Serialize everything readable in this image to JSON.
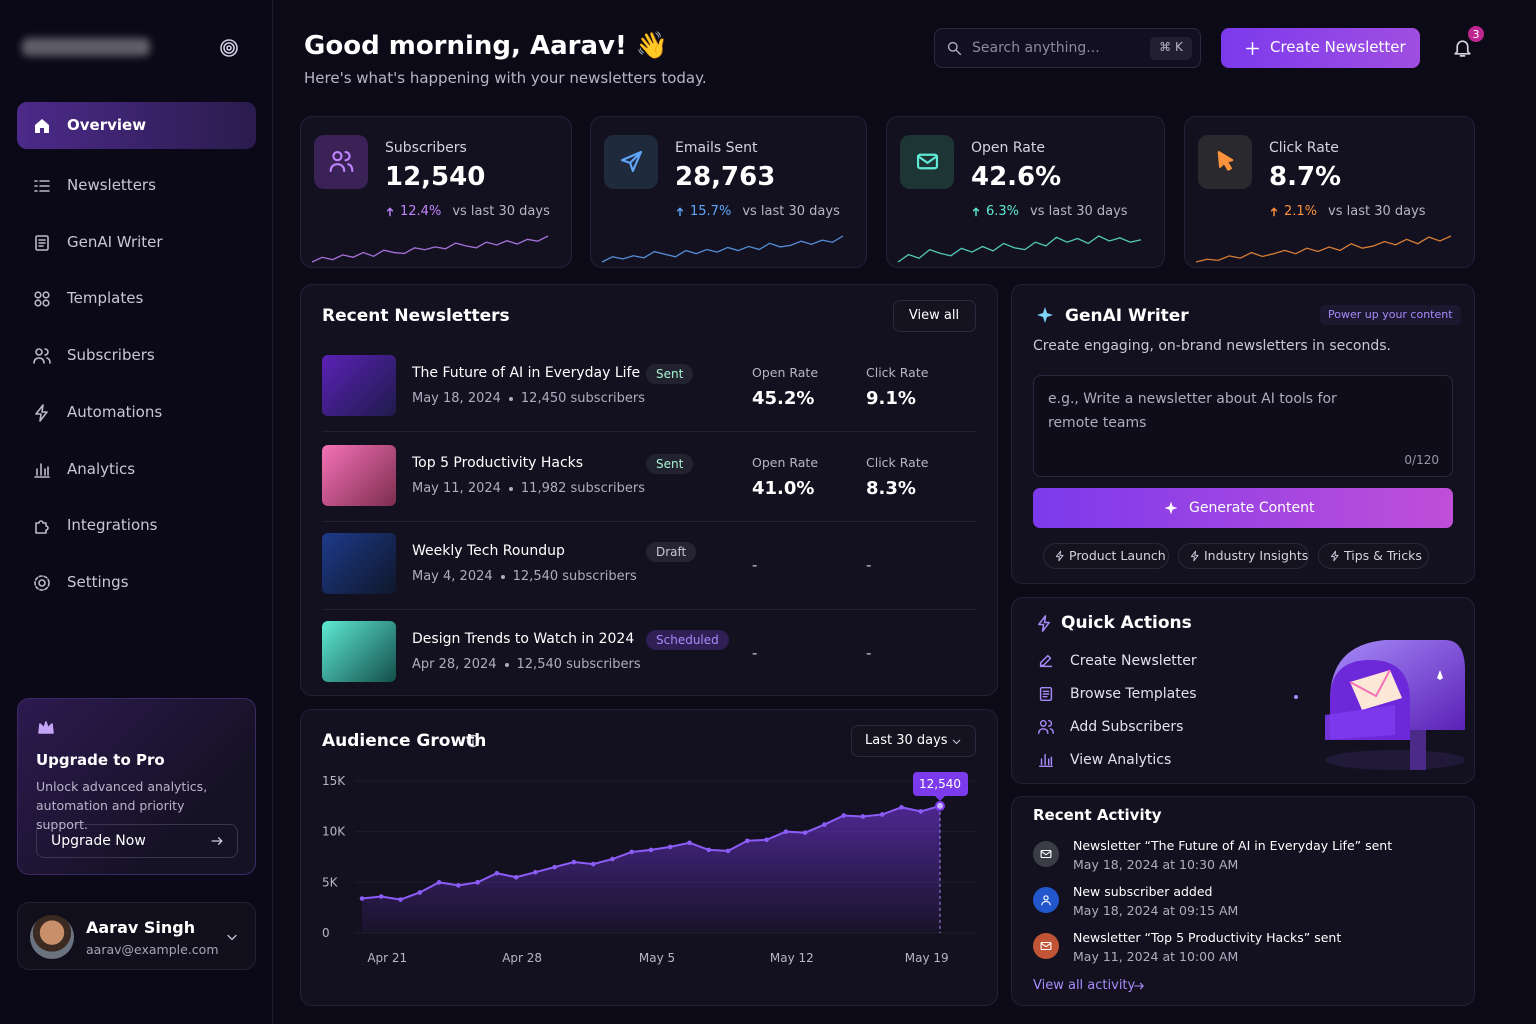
{
  "sidebar": {
    "nav": [
      "Overview",
      "Newsletters",
      "GenAI Writer",
      "Templates",
      "Subscribers",
      "Automations",
      "Analytics",
      "Integrations",
      "Settings"
    ],
    "upgrade": {
      "title": "Upgrade to Pro",
      "text": "Unlock advanced analytics, automation and priority support.",
      "button": "Upgrade Now"
    },
    "user": {
      "name": "Aarav Singh",
      "email": "aarav@example.com"
    }
  },
  "header": {
    "greeting": "Good morning, Aarav! 👋",
    "subtitle": "Here's what's happening with your newsletters today.",
    "search_placeholder": "Search anything...",
    "shortcut": "⌘ K",
    "create_button": "Create Newsletter",
    "notifications": "3"
  },
  "stats": [
    {
      "label": "Subscribers",
      "value": "12,540",
      "change": "12.4%",
      "period": "vs last 30 days",
      "color": "#c084fc",
      "trend": [
        2,
        3,
        2.5,
        3.5,
        3,
        4,
        3.2,
        4.5,
        4,
        3.8,
        5,
        4.6,
        5.2,
        4.8,
        6,
        5.4,
        5,
        6.2,
        5.6,
        6.5,
        5.8,
        6.8,
        6.4,
        7.5
      ]
    },
    {
      "label": "Emails Sent",
      "value": "28,763",
      "change": "15.7%",
      "period": "vs last 30 days",
      "color": "#60a5fa",
      "trend": [
        2,
        3,
        2.6,
        3.2,
        2.8,
        4,
        3.5,
        3,
        4.2,
        3.6,
        4.4,
        3.9,
        4.8,
        4.2,
        5,
        4.4,
        5.6,
        4.9,
        5.2,
        6,
        5.4,
        6.2,
        5.8,
        7
      ]
    },
    {
      "label": "Open Rate",
      "value": "42.6%",
      "change": "6.3%",
      "period": "vs last 30 days",
      "color": "#5eead4",
      "trend": [
        3,
        4.2,
        3.6,
        5,
        4.4,
        4,
        5.2,
        4.6,
        5.5,
        4.8,
        6,
        5.3,
        5,
        6.2,
        5.6,
        7,
        6.2,
        6.8,
        6,
        7.2,
        6.4,
        6.9,
        6.2,
        6.6
      ]
    },
    {
      "label": "Click Rate",
      "value": "8.7%",
      "change": "2.1%",
      "period": "vs last 30 days",
      "color": "#fb923c",
      "trend": [
        2.5,
        3,
        2.8,
        3.6,
        3.2,
        4.2,
        3.5,
        4,
        4.6,
        4,
        5,
        4.4,
        5.2,
        4.6,
        5.8,
        5,
        5.4,
        6.2,
        5.6,
        6.6,
        5.8,
        7,
        6.3,
        7.2
      ]
    }
  ],
  "recent_newsletters": {
    "title": "Recent Newsletters",
    "view_all": "View all",
    "rows": [
      {
        "title": "The Future of AI in Everyday Life",
        "date": "May 18, 2024",
        "subscribers": "12,450 subscribers",
        "status": "Sent",
        "open_label": "Open Rate",
        "open_rate": "45.2%",
        "click_label": "Click Rate",
        "click_rate": "9.1%"
      },
      {
        "title": "Top 5 Productivity Hacks",
        "date": "May 11, 2024",
        "subscribers": "11,982 subscribers",
        "status": "Sent",
        "open_label": "Open Rate",
        "open_rate": "41.0%",
        "click_label": "Click Rate",
        "click_rate": "8.3%"
      },
      {
        "title": "Weekly Tech Roundup",
        "date": "May 4, 2024",
        "subscribers": "12,540 subscribers",
        "status": "Draft",
        "open_rate": "-",
        "click_rate": "-"
      },
      {
        "title": "Design Trends to Watch in 2024",
        "date": "Apr 28, 2024",
        "subscribers": "12,540 subscribers",
        "status": "Scheduled",
        "open_rate": "-",
        "click_rate": "-"
      }
    ]
  },
  "genai": {
    "title": "GenAI Writer",
    "badge": "Power up your content",
    "subtitle": "Create engaging, on-brand newsletters in seconds.",
    "placeholder": "e.g., Write a newsletter about AI tools for remote teams",
    "counter": "0/120",
    "button": "Generate Content",
    "chips": [
      "Product Launch",
      "Industry Insights",
      "Tips & Tricks"
    ]
  },
  "quick_actions": {
    "title": "Quick Actions",
    "items": [
      "Create Newsletter",
      "Browse Templates",
      "Add Subscribers",
      "View Analytics"
    ]
  },
  "audience_growth": {
    "type": "area",
    "title": "Audience Growth",
    "range": "Last 30 days",
    "categories": [
      null,
      "Apr 21",
      null,
      null,
      null,
      null,
      null,
      null,
      "Apr 28",
      null,
      null,
      null,
      null,
      null,
      null,
      "May 5",
      null,
      null,
      null,
      null,
      null,
      null,
      "May 12",
      null,
      null,
      null,
      null,
      null,
      null,
      "May 19",
      null
    ],
    "values": [
      3400,
      3600,
      3300,
      4000,
      5000,
      4700,
      5000,
      5900,
      5500,
      6000,
      6500,
      7000,
      6800,
      7300,
      8000,
      8200,
      8500,
      8900,
      8200,
      8100,
      9100,
      9200,
      10000,
      9900,
      10700,
      11600,
      11500,
      11700,
      12400,
      12000,
      12540
    ],
    "value_labels": [
      null,
      null,
      null,
      null,
      null,
      null,
      null,
      null,
      null,
      null,
      null,
      null,
      null,
      null,
      null,
      null,
      null,
      null,
      null,
      null,
      null,
      null,
      null,
      null,
      null,
      null,
      null,
      null,
      null,
      null,
      "12,540"
    ],
    "ylim": [
      0,
      15000
    ],
    "yticks": [
      0,
      {
        "value": 5000,
        "label": "5K"
      },
      {
        "value": 10000,
        "label": "10K"
      },
      {
        "value": 15000,
        "label": "15K"
      }
    ],
    "grid": true,
    "color": "#8b5cf6"
  },
  "recent_activity": {
    "title": "Recent Activity",
    "items": [
      {
        "text": "Newsletter “The Future of AI in Everyday Life” sent",
        "time": "May 18, 2024 at 10:30 AM"
      },
      {
        "text": "New subscriber added",
        "time": "May 18, 2024 at 09:15 AM"
      },
      {
        "text": "Newsletter “Top 5 Productivity Hacks” sent",
        "time": "May 11, 2024 at 10:00 AM"
      }
    ],
    "link": "View all activity"
  }
}
